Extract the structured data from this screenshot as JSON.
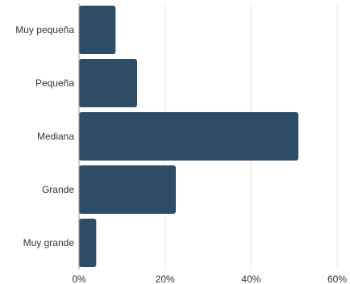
{
  "chart_data": {
    "type": "bar",
    "orientation": "horizontal",
    "categories": [
      "Muy pequeña",
      "Pequeña",
      "Mediana",
      "Grande",
      "Muy grande"
    ],
    "values": [
      8.5,
      13.5,
      51,
      22.5,
      4
    ],
    "unit": "%",
    "xlim": [
      0,
      60
    ],
    "xticks": [
      "0%",
      "20%",
      "40%",
      "60%"
    ],
    "xtick_values": [
      0,
      20,
      40,
      60
    ],
    "grid": true,
    "bar_color": "#2d4d66",
    "title": "",
    "xlabel": "",
    "ylabel": ""
  }
}
